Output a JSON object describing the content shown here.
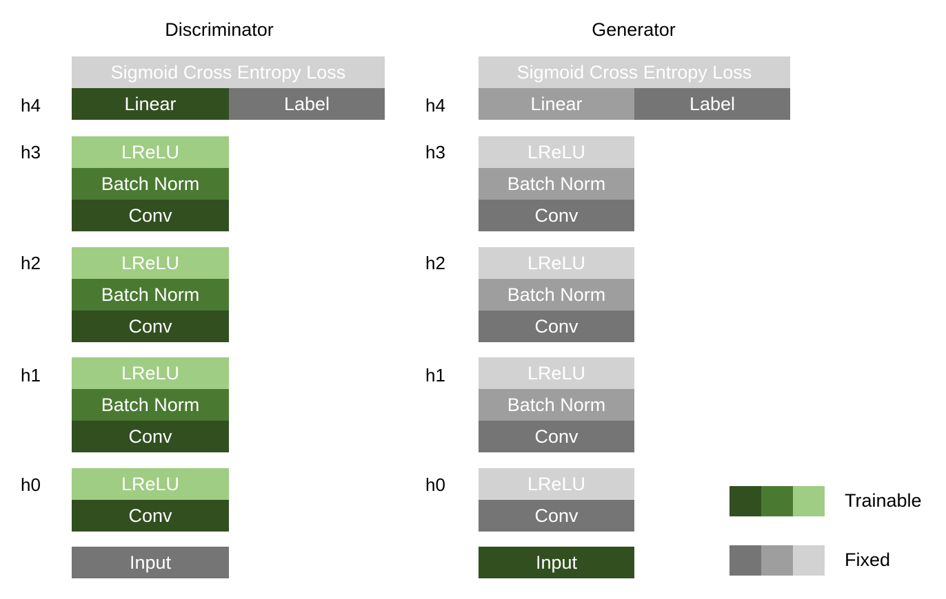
{
  "colors": {
    "trainable_dark": "#324f20",
    "trainable_mid": "#4a7a31",
    "trainable_light": "#9fcd83",
    "fixed_dark": "#757575",
    "fixed_mid": "#9e9e9e",
    "fixed_light": "#d2d2d2"
  },
  "discriminator": {
    "title": "Discriminator",
    "loss": "Sigmoid Cross Entropy Loss",
    "h4": {
      "label": "h4",
      "linear": "Linear",
      "label_block": "Label"
    },
    "h3": {
      "label": "h3",
      "lrelu": "LReLU",
      "bn": "Batch Norm",
      "conv": "Conv"
    },
    "h2": {
      "label": "h2",
      "lrelu": "LReLU",
      "bn": "Batch Norm",
      "conv": "Conv"
    },
    "h1": {
      "label": "h1",
      "lrelu": "LReLU",
      "bn": "Batch Norm",
      "conv": "Conv"
    },
    "h0": {
      "label": "h0",
      "lrelu": "LReLU",
      "conv": "Conv"
    },
    "input": "Input"
  },
  "generator": {
    "title": "Generator",
    "loss": "Sigmoid Cross Entropy Loss",
    "h4": {
      "label": "h4",
      "linear": "Linear",
      "label_block": "Label"
    },
    "h3": {
      "label": "h3",
      "lrelu": "LReLU",
      "bn": "Batch Norm",
      "conv": "Conv"
    },
    "h2": {
      "label": "h2",
      "lrelu": "LReLU",
      "bn": "Batch Norm",
      "conv": "Conv"
    },
    "h1": {
      "label": "h1",
      "lrelu": "LReLU",
      "bn": "Batch Norm",
      "conv": "Conv"
    },
    "h0": {
      "label": "h0",
      "lrelu": "LReLU",
      "conv": "Conv"
    },
    "input": "Input"
  },
  "legend": {
    "trainable": "Trainable",
    "fixed": "Fixed"
  }
}
